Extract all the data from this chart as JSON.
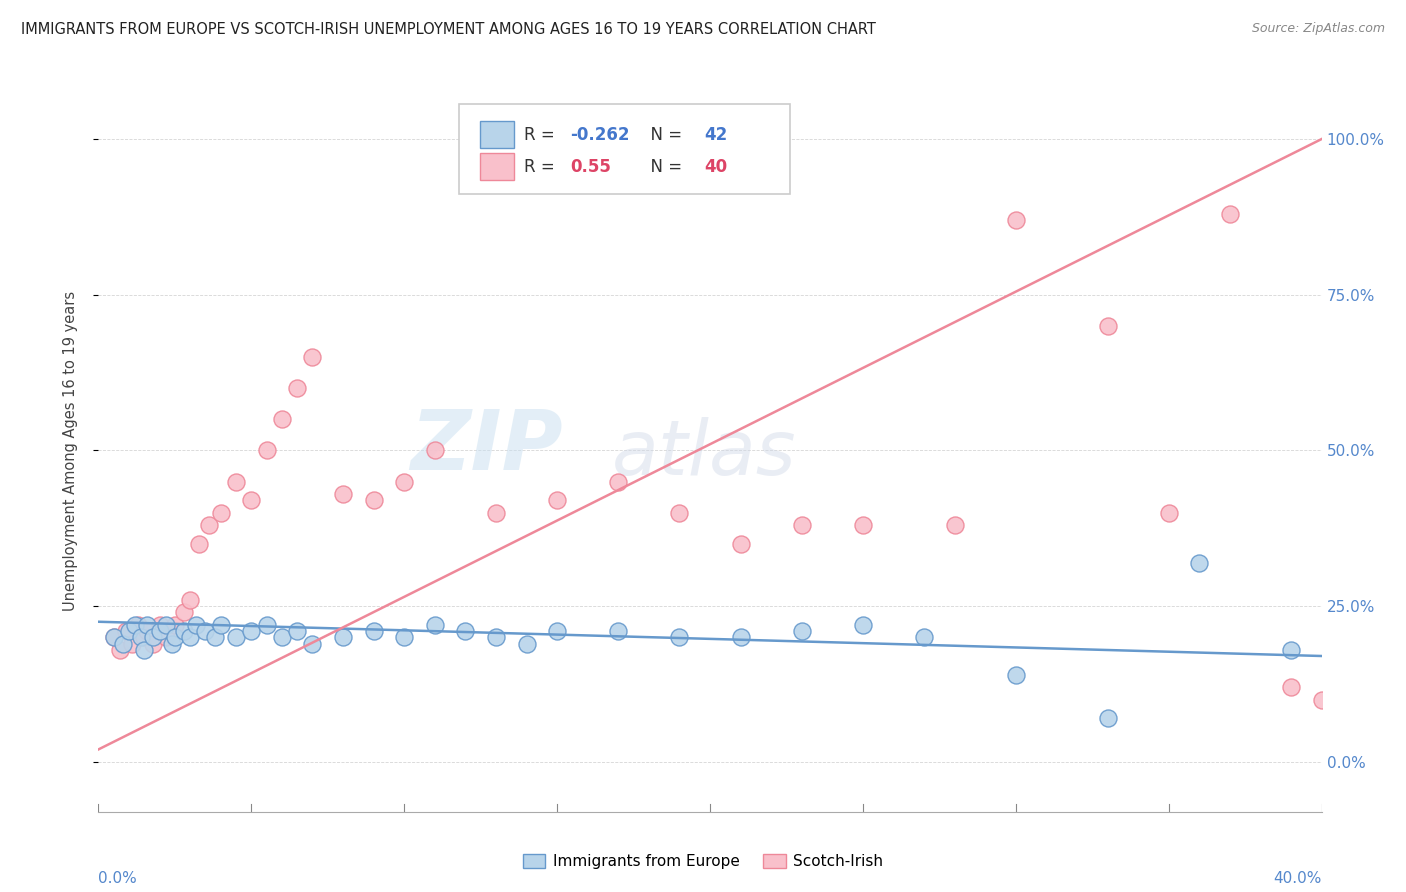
{
  "title": "IMMIGRANTS FROM EUROPE VS SCOTCH-IRISH UNEMPLOYMENT AMONG AGES 16 TO 19 YEARS CORRELATION CHART",
  "source": "Source: ZipAtlas.com",
  "ylabel": "Unemployment Among Ages 16 to 19 years",
  "y_ticks": [
    0.0,
    0.25,
    0.5,
    0.75,
    1.0
  ],
  "y_tick_labels": [
    "0.0%",
    "25.0%",
    "50.0%",
    "75.0%",
    "100.0%"
  ],
  "x_range": [
    0.0,
    0.4
  ],
  "y_range": [
    -0.08,
    1.08
  ],
  "blue_R": -0.262,
  "blue_N": 42,
  "pink_R": 0.55,
  "pink_N": 40,
  "blue_color": "#b8d4ea",
  "pink_color": "#f9c0cb",
  "blue_edge_color": "#6699cc",
  "pink_edge_color": "#ee8899",
  "watermark_zip": "ZIP",
  "watermark_atlas": "atlas",
  "legend_label_blue": "Immigrants from Europe",
  "legend_label_pink": "Scotch-Irish",
  "blue_scatter_x": [
    0.005,
    0.008,
    0.01,
    0.012,
    0.014,
    0.015,
    0.016,
    0.018,
    0.02,
    0.022,
    0.024,
    0.025,
    0.028,
    0.03,
    0.032,
    0.035,
    0.038,
    0.04,
    0.045,
    0.05,
    0.055,
    0.06,
    0.065,
    0.07,
    0.08,
    0.09,
    0.1,
    0.11,
    0.12,
    0.13,
    0.14,
    0.15,
    0.17,
    0.19,
    0.21,
    0.23,
    0.25,
    0.27,
    0.3,
    0.33,
    0.36,
    0.39
  ],
  "blue_scatter_y": [
    0.2,
    0.19,
    0.21,
    0.22,
    0.2,
    0.18,
    0.22,
    0.2,
    0.21,
    0.22,
    0.19,
    0.2,
    0.21,
    0.2,
    0.22,
    0.21,
    0.2,
    0.22,
    0.2,
    0.21,
    0.22,
    0.2,
    0.21,
    0.19,
    0.2,
    0.21,
    0.2,
    0.22,
    0.21,
    0.2,
    0.19,
    0.21,
    0.21,
    0.2,
    0.2,
    0.21,
    0.22,
    0.2,
    0.14,
    0.07,
    0.32,
    0.18
  ],
  "pink_scatter_x": [
    0.005,
    0.007,
    0.009,
    0.011,
    0.013,
    0.015,
    0.016,
    0.018,
    0.02,
    0.022,
    0.025,
    0.028,
    0.03,
    0.033,
    0.036,
    0.04,
    0.045,
    0.05,
    0.055,
    0.06,
    0.065,
    0.07,
    0.08,
    0.09,
    0.1,
    0.11,
    0.13,
    0.15,
    0.17,
    0.19,
    0.21,
    0.23,
    0.25,
    0.28,
    0.3,
    0.33,
    0.35,
    0.37,
    0.39,
    0.4
  ],
  "pink_scatter_y": [
    0.2,
    0.18,
    0.21,
    0.19,
    0.22,
    0.2,
    0.21,
    0.19,
    0.22,
    0.2,
    0.22,
    0.24,
    0.26,
    0.35,
    0.38,
    0.4,
    0.45,
    0.42,
    0.5,
    0.55,
    0.6,
    0.65,
    0.43,
    0.42,
    0.45,
    0.5,
    0.4,
    0.42,
    0.45,
    0.4,
    0.35,
    0.38,
    0.38,
    0.38,
    0.87,
    0.7,
    0.4,
    0.88,
    0.12,
    0.1
  ],
  "blue_trend_x0": 0.0,
  "blue_trend_x1": 0.4,
  "blue_trend_y0": 0.225,
  "blue_trend_y1": 0.17,
  "pink_trend_x0": 0.0,
  "pink_trend_x1": 0.4,
  "pink_trend_y0": 0.02,
  "pink_trend_y1": 1.0
}
